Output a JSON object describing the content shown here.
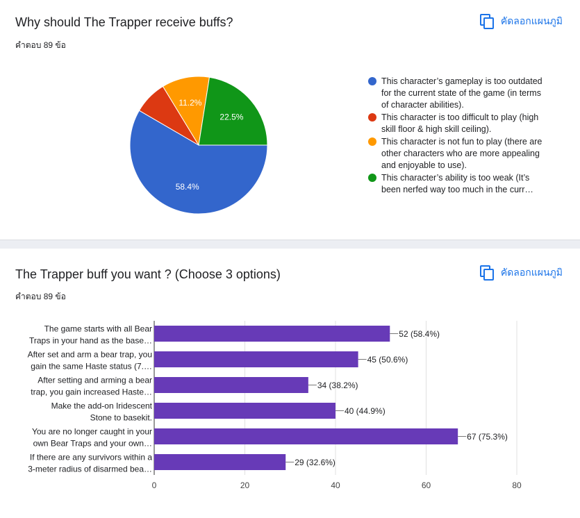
{
  "ui": {
    "copy_label": "คัดลอกแผนภูมิ",
    "copy_icon": "copy-icon",
    "accent_color": "#1a73e8"
  },
  "question1": {
    "title": "Why should The Trapper receive buffs?",
    "response_count": "คำตอบ 89 ข้อ",
    "legend": [
      "This character’s gameplay is too outdated for the current state of the game (in terms of character abilities).",
      "This character is too difficult to play (high skill floor & high skill ceiling).",
      "This character is not fun to play (there are other characters who are more appealing and enjoyable to use).",
      "This character’s ability is too weak (It’s been nerfed way too much in the curr…"
    ]
  },
  "question2": {
    "title": "The Trapper buff you want ? (Choose 3 options)",
    "response_count": "คำตอบ 89 ข้อ"
  },
  "chart_data": [
    {
      "type": "pie",
      "slices": [
        {
          "label": "This character’s gameplay is too outdated for the current state of the game (in terms of character abilities).",
          "value": 58.4,
          "display": "58.4%",
          "color": "#3366cc"
        },
        {
          "label": "This character is too difficult to play (high skill floor & high skill ceiling).",
          "value": 7.9,
          "display": "",
          "color": "#dc3912"
        },
        {
          "label": "This character is not fun to play (there are other characters who are more appealing and enjoyable to use).",
          "value": 11.2,
          "display": "11.2%",
          "color": "#ff9900"
        },
        {
          "label": "This character’s ability is too weak (It’s been nerfed way too much in the curr…",
          "value": 22.5,
          "display": "22.5%",
          "color": "#109618"
        }
      ],
      "legend_position": "right"
    },
    {
      "type": "bar",
      "orientation": "horizontal",
      "color": "#673ab7",
      "categories": [
        [
          "The game starts with all Bear",
          "Traps in your hand as the base…"
        ],
        [
          "After set and arm a bear trap, you",
          "gain the same Haste status (7.…"
        ],
        [
          "After setting and arming a bear",
          "trap, you gain increased Haste…"
        ],
        [
          "Make the add-on Iridescent",
          "Stone to basekit."
        ],
        [
          "You are no longer caught in your",
          "own Bear Traps and your own…"
        ],
        [
          "If there are any survivors within a",
          "3-meter radius of disarmed bea…"
        ]
      ],
      "values": [
        52,
        45,
        34,
        40,
        67,
        29
      ],
      "labels": [
        "52 (58.4%)",
        "45 (50.6%)",
        "34 (38.2%)",
        "40 (44.9%)",
        "67 (75.3%)",
        "29 (32.6%)"
      ],
      "xlim": [
        0,
        80
      ],
      "xticks": [
        "0",
        "20",
        "40",
        "60",
        "80"
      ],
      "grid": true
    }
  ]
}
